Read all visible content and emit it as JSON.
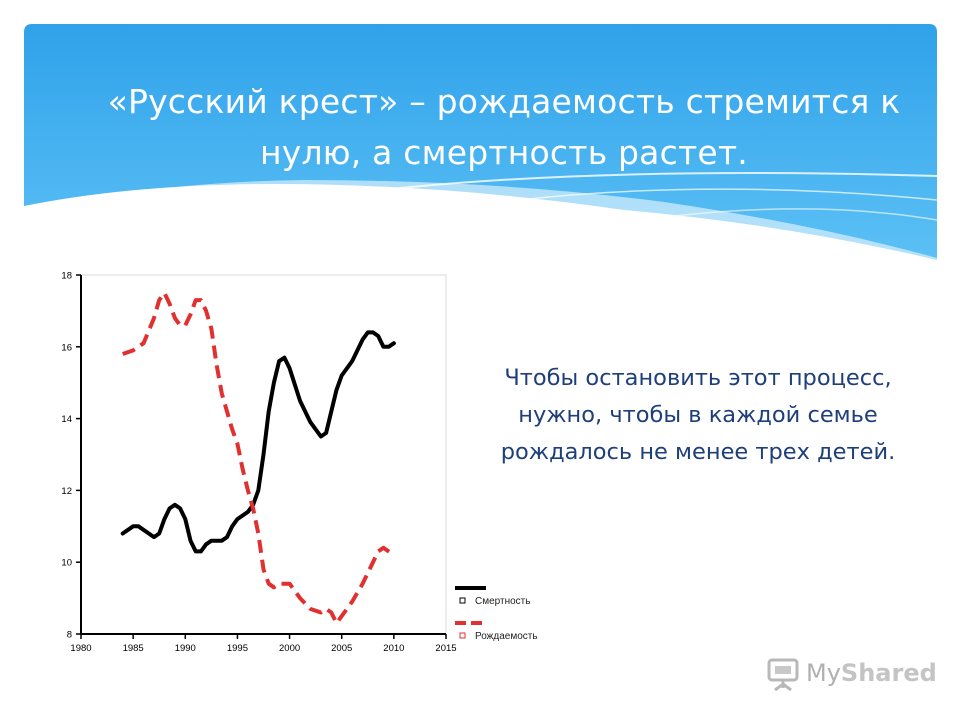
{
  "slide": {
    "title": "«Русский крест» – рождаемость стремится к нулю, а смертность растет.",
    "note": "Чтобы остановить этот процесс, нужно, чтобы в каждой семье рождалось не менее трех детей.",
    "logo_prefix": "My",
    "logo_suffix": "Shared",
    "header_color": "#3aa8ec"
  },
  "chart_data": {
    "type": "line",
    "title": "",
    "xlabel": "",
    "ylabel": "",
    "xlim": [
      1980,
      2015
    ],
    "ylim": [
      8,
      18
    ],
    "x_ticks": [
      1980,
      1985,
      1990,
      1995,
      2000,
      2005,
      2010,
      2015
    ],
    "y_ticks": [
      8,
      10,
      12,
      14,
      16,
      18
    ],
    "legend_position": "right",
    "series": [
      {
        "name": "Смертность",
        "color": "#000000",
        "style": "solid",
        "points": [
          [
            1984,
            10.8
          ],
          [
            1985,
            11.0
          ],
          [
            1985.5,
            11.0
          ],
          [
            1986.5,
            10.8
          ],
          [
            1987,
            10.7
          ],
          [
            1987.5,
            10.8
          ],
          [
            1988,
            11.2
          ],
          [
            1988.5,
            11.5
          ],
          [
            1989,
            11.6
          ],
          [
            1989.5,
            11.5
          ],
          [
            1990,
            11.2
          ],
          [
            1990.5,
            10.6
          ],
          [
            1991,
            10.3
          ],
          [
            1991.5,
            10.3
          ],
          [
            1992,
            10.5
          ],
          [
            1992.5,
            10.6
          ],
          [
            1993.5,
            10.6
          ],
          [
            1994,
            10.7
          ],
          [
            1994.5,
            11.0
          ],
          [
            1995,
            11.2
          ],
          [
            1995.5,
            11.3
          ],
          [
            1996,
            11.4
          ],
          [
            1996.5,
            11.6
          ],
          [
            1997,
            12.0
          ],
          [
            1997.5,
            13.0
          ],
          [
            1998,
            14.2
          ],
          [
            1998.5,
            15.0
          ],
          [
            1999,
            15.6
          ],
          [
            1999.5,
            15.7
          ],
          [
            2000,
            15.4
          ],
          [
            2001,
            14.5
          ],
          [
            2002,
            13.9
          ],
          [
            2003,
            13.5
          ],
          [
            2003.5,
            13.6
          ],
          [
            2004,
            14.2
          ],
          [
            2004.5,
            14.8
          ],
          [
            2005,
            15.2
          ],
          [
            2006,
            15.6
          ],
          [
            2007,
            16.2
          ],
          [
            2007.5,
            16.4
          ],
          [
            2008,
            16.4
          ],
          [
            2008.5,
            16.3
          ],
          [
            2009,
            16.0
          ],
          [
            2009.5,
            16.0
          ],
          [
            2010,
            16.1
          ]
        ]
      },
      {
        "name": "Рождаемость",
        "color": "#e03030",
        "style": "dashed",
        "points": [
          [
            1984,
            15.8
          ],
          [
            1985,
            15.9
          ],
          [
            1986,
            16.1
          ],
          [
            1987,
            16.8
          ],
          [
            1987.5,
            17.3
          ],
          [
            1988,
            17.5
          ],
          [
            1988.5,
            17.2
          ],
          [
            1989,
            16.8
          ],
          [
            1989.5,
            16.6
          ],
          [
            1990,
            16.6
          ],
          [
            1990.5,
            16.9
          ],
          [
            1991,
            17.3
          ],
          [
            1991.5,
            17.3
          ],
          [
            1992,
            17.0
          ],
          [
            1992.5,
            16.5
          ],
          [
            1993,
            15.5
          ],
          [
            1993.5,
            14.7
          ],
          [
            1994,
            14.2
          ],
          [
            1994.5,
            13.7
          ],
          [
            1995,
            13.3
          ],
          [
            1995.5,
            12.6
          ],
          [
            1996,
            12.0
          ],
          [
            1996.5,
            11.5
          ],
          [
            1997,
            10.8
          ],
          [
            1997.5,
            9.8
          ],
          [
            1998,
            9.4
          ],
          [
            1998.5,
            9.3
          ],
          [
            1999,
            9.4
          ],
          [
            2000,
            9.4
          ],
          [
            2001,
            9.0
          ],
          [
            2002,
            8.7
          ],
          [
            2003,
            8.6
          ],
          [
            2003.5,
            8.7
          ],
          [
            2004,
            8.6
          ],
          [
            2004.5,
            8.3
          ],
          [
            2005,
            8.5
          ],
          [
            2006,
            8.9
          ],
          [
            2007,
            9.4
          ],
          [
            2008,
            10.0
          ],
          [
            2008.5,
            10.3
          ],
          [
            2009,
            10.4
          ],
          [
            2010,
            10.2
          ]
        ]
      }
    ]
  }
}
